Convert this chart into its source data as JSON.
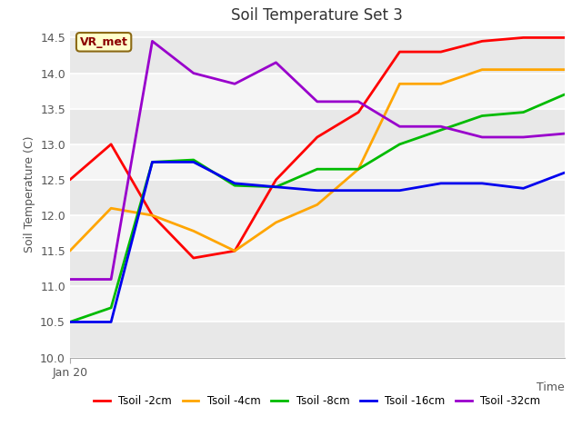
{
  "title": "Soil Temperature Set 3",
  "xlabel": "Time",
  "ylabel": "Soil Temperature (C)",
  "ylim": [
    10.0,
    14.6
  ],
  "xlim": [
    0,
    12
  ],
  "xtick_labels": [
    "Jan 20"
  ],
  "ytick_vals": [
    10.0,
    10.5,
    11.0,
    11.5,
    12.0,
    12.5,
    13.0,
    13.5,
    14.0,
    14.5
  ],
  "annotation_text": "VR_met",
  "annotation_color": "#8B0000",
  "annotation_bg": "#FFFFCC",
  "annotation_border": "#8B6914",
  "series": {
    "Tsoil -2cm": {
      "color": "#FF0000",
      "x": [
        0,
        1,
        2,
        3,
        4,
        5,
        6,
        7,
        8,
        9,
        10,
        11,
        12
      ],
      "y": [
        12.5,
        13.0,
        12.0,
        11.4,
        11.5,
        12.5,
        13.1,
        13.45,
        14.3,
        14.3,
        14.45,
        14.5,
        14.5
      ]
    },
    "Tsoil -4cm": {
      "color": "#FFA500",
      "x": [
        0,
        1,
        2,
        3,
        4,
        5,
        6,
        7,
        8,
        9,
        10,
        11,
        12
      ],
      "y": [
        11.5,
        12.1,
        12.0,
        11.78,
        11.5,
        11.9,
        12.15,
        12.65,
        13.85,
        13.85,
        14.05,
        14.05,
        14.05
      ]
    },
    "Tsoil -8cm": {
      "color": "#00BB00",
      "x": [
        0,
        1,
        2,
        3,
        4,
        5,
        6,
        7,
        8,
        9,
        10,
        11,
        12
      ],
      "y": [
        10.5,
        10.7,
        12.75,
        12.78,
        12.42,
        12.4,
        12.65,
        12.65,
        13.0,
        13.2,
        13.4,
        13.45,
        13.7
      ]
    },
    "Tsoil -16cm": {
      "color": "#0000EE",
      "x": [
        0,
        1,
        2,
        3,
        4,
        5,
        6,
        7,
        8,
        9,
        10,
        11,
        12
      ],
      "y": [
        10.5,
        10.5,
        12.75,
        12.75,
        12.45,
        12.4,
        12.35,
        12.35,
        12.35,
        12.45,
        12.45,
        12.38,
        12.6
      ]
    },
    "Tsoil -32cm": {
      "color": "#9900CC",
      "x": [
        0,
        1,
        2,
        3,
        4,
        5,
        6,
        7,
        8,
        9,
        10,
        11,
        12
      ],
      "y": [
        11.1,
        11.1,
        14.45,
        14.0,
        13.85,
        14.15,
        13.6,
        13.6,
        13.25,
        13.25,
        13.1,
        13.1,
        13.15
      ]
    }
  },
  "fig_bg_color": "#ffffff",
  "plot_bg_light": "#f0f0f0",
  "plot_bg_dark": "#e0e0e0",
  "grid_color": "#ffffff",
  "legend_entries": [
    "Tsoil -2cm",
    "Tsoil -4cm",
    "Tsoil -8cm",
    "Tsoil -16cm",
    "Tsoil -32cm"
  ],
  "spine_color": "#aaaaaa",
  "tick_color": "#555555",
  "label_color": "#555555",
  "title_color": "#333333"
}
